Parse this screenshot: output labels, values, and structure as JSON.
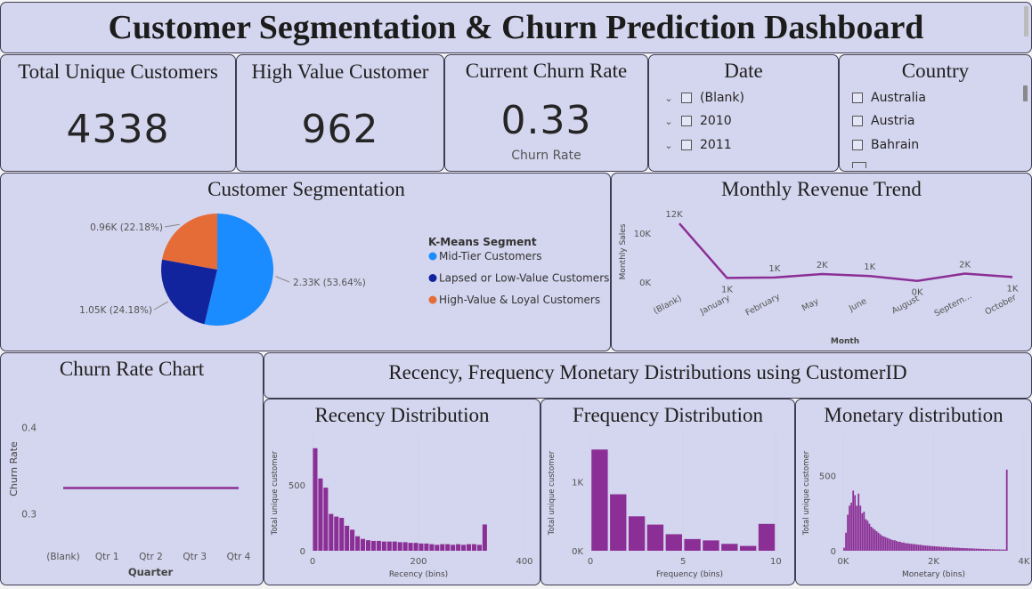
{
  "header": {
    "title": "Customer Segmentation & Churn Prediction Dashboard"
  },
  "kpis": {
    "total_unique": {
      "label": "Total Unique Customers",
      "value": "4338"
    },
    "high_value": {
      "label": "High Value Customer",
      "value": "962"
    },
    "churn_rate": {
      "label": "Current Churn Rate",
      "value": "0.33",
      "caption": "Churn Rate"
    }
  },
  "slicers": {
    "date": {
      "title": "Date",
      "items": [
        "(Blank)",
        "2010",
        "2011"
      ]
    },
    "country": {
      "title": "Country",
      "items": [
        "Australia",
        "Austria",
        "Bahrain"
      ]
    }
  },
  "icons": {
    "expand": "chevron-down-icon",
    "checkbox": "checkbox-icon"
  },
  "colors": {
    "panel_bg": "#d4d5ee",
    "purple": "#8b2f96",
    "mid_tier": "#1a8cff",
    "lapsed": "#12239e",
    "high_value": "#e66c37"
  },
  "sections": {
    "segmentation": {
      "title": "Customer Segmentation"
    },
    "revenue": {
      "title": "Monthly Revenue Trend"
    },
    "churn": {
      "title": "Churn Rate Chart"
    },
    "rfm": {
      "title": "Recency, Frequency Monetary Distributions using CustomerID"
    },
    "recency": {
      "title": "Recency Distribution"
    },
    "frequency": {
      "title": "Frequency Distribution"
    },
    "monetary": {
      "title": "Monetary distribution"
    }
  },
  "chart_data": [
    {
      "id": "segmentation",
      "type": "pie",
      "legend_title": "K-Means Segment",
      "legend_position": "right",
      "slices": [
        {
          "name": "Mid-Tier Customers",
          "value": 2.33,
          "label": "2.33K (53.64%)",
          "color": "#1a8cff"
        },
        {
          "name": "Lapsed or Low-Value Customers",
          "value": 1.05,
          "label": "1.05K (24.18%)",
          "color": "#12239e"
        },
        {
          "name": "High-Value & Loyal Customers",
          "value": 0.96,
          "label": "0.96K (22.18%)",
          "color": "#e66c37"
        }
      ]
    },
    {
      "id": "revenue",
      "type": "line",
      "xlabel": "Month",
      "ylabel": "Monthly Sales",
      "categories": [
        "(Blank)",
        "January",
        "February",
        "May",
        "June",
        "August",
        "Septem...",
        "October"
      ],
      "values": [
        12000,
        800,
        900,
        1600,
        1200,
        200,
        1700,
        1000
      ],
      "data_labels": [
        "12K",
        "1K",
        "1K",
        "2K",
        "1K",
        "0K",
        "2K",
        "1K"
      ],
      "yticks": [
        "10K",
        "0K"
      ],
      "ytick_values": [
        10000,
        0
      ],
      "ylim": [
        -1500,
        13500
      ]
    },
    {
      "id": "churn",
      "type": "line",
      "xlabel": "Quarter",
      "ylabel": "Churn Rate",
      "categories": [
        "(Blank)",
        "Qtr 1",
        "Qtr 2",
        "Qtr 3",
        "Qtr 4"
      ],
      "values": [
        0.33,
        0.33,
        0.33,
        0.33,
        0.33
      ],
      "yticks": [
        "0.4",
        "0.3"
      ],
      "ytick_values": [
        0.4,
        0.3
      ],
      "ylim": [
        0.28,
        0.41
      ]
    },
    {
      "id": "recency",
      "type": "bar",
      "xlabel": "Recency (bins)",
      "ylabel": "Total unique customer",
      "bin_start": 0,
      "bin_width": 10,
      "xlim": [
        0,
        400
      ],
      "xticks": [
        "0",
        "200",
        "400"
      ],
      "xtick_values": [
        0,
        200,
        400
      ],
      "yticks": [
        "500",
        "0"
      ],
      "ytick_values": [
        500,
        0
      ],
      "ylim": [
        0,
        880
      ],
      "values": [
        780,
        550,
        480,
        280,
        260,
        250,
        190,
        160,
        110,
        90,
        80,
        75,
        75,
        70,
        70,
        70,
        65,
        65,
        60,
        60,
        55,
        55,
        50,
        45,
        50,
        50,
        45,
        50,
        45,
        50,
        50,
        45,
        200
      ]
    },
    {
      "id": "frequency",
      "type": "bar",
      "xlabel": "Frequency (bins)",
      "ylabel": "Total unique customer",
      "bin_start": 0,
      "bin_width": 1,
      "xlim": [
        0,
        10.7
      ],
      "xticks": [
        "0",
        "5",
        "10"
      ],
      "xtick_values": [
        0,
        5,
        10
      ],
      "yticks": [
        "1K",
        "0K"
      ],
      "ytick_values": [
        1000,
        0
      ],
      "ylim": [
        0,
        1680
      ],
      "values": [
        1470,
        820,
        500,
        380,
        240,
        170,
        150,
        100,
        70,
        390
      ]
    },
    {
      "id": "monetary",
      "type": "bar",
      "xlabel": "Monetary (bins)",
      "ylabel": "Total unique customer",
      "bin_start": 0,
      "bin_width": 40,
      "xlim": [
        0,
        4000
      ],
      "xticks": [
        "0K",
        "2K",
        "4K"
      ],
      "xtick_values": [
        0,
        2000,
        4000
      ],
      "yticks": [
        "500",
        "0"
      ],
      "ytick_values": [
        500,
        0
      ],
      "ylim": [
        0,
        770
      ],
      "values": [
        20,
        120,
        240,
        300,
        320,
        400,
        370,
        300,
        380,
        300,
        250,
        260,
        210,
        200,
        180,
        160,
        150,
        140,
        130,
        120,
        110,
        100,
        95,
        90,
        85,
        80,
        75,
        70,
        70,
        65,
        60,
        60,
        55,
        55,
        50,
        50,
        48,
        46,
        45,
        44,
        42,
        40,
        40,
        38,
        36,
        35,
        34,
        33,
        32,
        30,
        30,
        29,
        28,
        27,
        26,
        25,
        25,
        24,
        23,
        22,
        22,
        21,
        20,
        20,
        19,
        18,
        18,
        17,
        17,
        16,
        16,
        15,
        15,
        14,
        14,
        13,
        13,
        12,
        12,
        11,
        11,
        10,
        10,
        10,
        9,
        9,
        9,
        8,
        8,
        8,
        540
      ]
    }
  ]
}
